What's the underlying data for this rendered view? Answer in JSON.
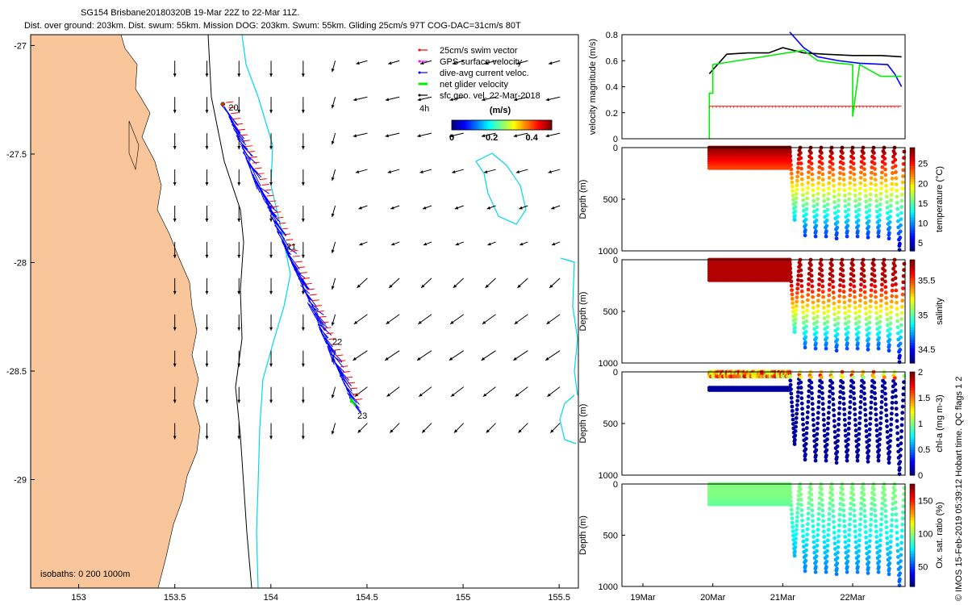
{
  "title_line1": "SG154 Brisbane20180320B 19-Mar 22Z to 22-Mar 11Z.",
  "title_line2": "Dist. over ground: 203km. Dist. swum: 55km. Mission DOG: 203km. Swum: 55km. Gliding 25cm/s 97T COG-DAC=31cm/s 80T",
  "credit": "© IMOS 15-Feb-2019 05:39:12 Hobart time. QC flags 1  2",
  "colors": {
    "land": "#f9c69c",
    "red": "#ff0000",
    "magenta": "#ff00ff",
    "blue": "#0000ff",
    "green": "#00ee00",
    "cyan": "#00d8e8",
    "black": "#000000"
  },
  "chart_data": [
    {
      "type": "scatter",
      "name": "glider track map",
      "xlim": [
        152.75,
        155.6
      ],
      "ylim": [
        -29.5,
        -26.95
      ],
      "x_ticks": [
        "153",
        "153.5",
        "154",
        "154.5",
        "155",
        "155.5"
      ],
      "x_tick_values": [
        153,
        153.5,
        154,
        154.5,
        155,
        155.5
      ],
      "y_ticks": [
        "-27",
        "-27.5",
        "-28",
        "-28.5",
        "-29"
      ],
      "y_tick_values": [
        -27,
        -27.5,
        -28,
        -28.5,
        -29
      ],
      "legend": [
        {
          "label": "25cm/s swim vector",
          "color": "#ff0000"
        },
        {
          "label": "GPS surface velocity",
          "color": "#ff00ff"
        },
        {
          "label": "dive-avg current veloc.",
          "color": "#0000ff"
        },
        {
          "label": "net glider velocity",
          "color": "#00ee00"
        },
        {
          "label": "sfc geo. vel. 22-Mar-2018",
          "color": "#000000"
        }
      ],
      "legend_scale_label": "4h",
      "colorbar": {
        "label": "(m/s)",
        "ticks": [
          "0",
          "0.2",
          "0.4"
        ],
        "tick_values": [
          0,
          0.2,
          0.4
        ],
        "range": [
          0,
          0.5
        ]
      },
      "isobaths_label": "isobaths: 0   200  1000m",
      "track": {
        "start": [
          153.75,
          -27.27
        ],
        "end": [
          154.42,
          -28.64
        ]
      },
      "day_labels": [
        {
          "text": "20",
          "lon": 153.78,
          "lat": -27.3
        },
        {
          "text": "21",
          "lon": 154.08,
          "lat": -27.94
        },
        {
          "text": "22",
          "lon": 154.32,
          "lat": -28.38
        },
        {
          "text": "23",
          "lon": 154.45,
          "lat": -28.72
        }
      ],
      "geo_vectors_grid": {
        "lon_start": 153.5,
        "lon_step": 0.167,
        "lat_start": -27.07,
        "lat_step": -0.167
      }
    },
    {
      "type": "line",
      "name": "velocity magnitude",
      "ylabel": "velocity magnitude (m/s)",
      "ylim": [
        0,
        0.8
      ],
      "y_ticks": [
        "0",
        "0.2",
        "0.4",
        "0.6",
        "0.8"
      ],
      "y_tick_values": [
        0,
        0.2,
        0.4,
        0.6,
        0.8
      ],
      "x_range_days": [
        18.7,
        22.75
      ],
      "series": [
        {
          "name": "swim (red)",
          "color": "#ff0000",
          "x": [
            19.95,
            22.7
          ],
          "values": [
            0.25,
            0.25
          ]
        },
        {
          "name": "current (blue)",
          "color": "#0000ff",
          "x": [
            21.1,
            21.3,
            21.5,
            21.8,
            22.1,
            22.5,
            22.6,
            22.7
          ],
          "values": [
            0.82,
            0.7,
            0.63,
            0.6,
            0.58,
            0.57,
            0.5,
            0.4
          ]
        },
        {
          "name": "net (black)",
          "color": "#000000",
          "x": [
            19.95,
            20.2,
            20.5,
            20.8,
            21.0,
            21.3,
            21.6,
            22.0,
            22.4,
            22.7
          ],
          "values": [
            0.5,
            0.65,
            0.66,
            0.66,
            0.7,
            0.66,
            0.65,
            0.64,
            0.64,
            0.63
          ]
        },
        {
          "name": "net glider (green)",
          "color": "#00ee00",
          "x": [
            19.95,
            19.95,
            20.0,
            20.0,
            21.3,
            21.5,
            21.8,
            22.0,
            22.0,
            22.1,
            22.4,
            22.7
          ],
          "values": [
            0,
            0.35,
            0.35,
            0.57,
            0.68,
            0.6,
            0.58,
            0.57,
            0.17,
            0.57,
            0.48,
            0.48
          ]
        }
      ]
    },
    {
      "type": "scatter",
      "name": "temperature section",
      "ylabel": "Depth (m)",
      "colorbar_label": "temperature (°C)",
      "colorbar_ticks": [
        "5",
        "10",
        "15",
        "20",
        "25"
      ],
      "colorbar_tick_values": [
        5,
        10,
        15,
        20,
        25
      ],
      "colorbar_range": [
        3,
        29
      ],
      "y_ticks": [
        "0",
        "500",
        "1000"
      ],
      "y_tick_values": [
        0,
        500,
        1000
      ],
      "ylim": [
        1000,
        0
      ],
      "dives_start": [
        21.1,
        21.25,
        21.4,
        21.55,
        21.7,
        21.85,
        22.0,
        22.15,
        22.3,
        22.45,
        22.6
      ],
      "dives_max_depth": [
        700,
        850,
        860,
        860,
        880,
        860,
        860,
        870,
        860,
        880,
        990
      ],
      "shallow_period": [
        19.95,
        21.1
      ],
      "shallow_depth": 200
    },
    {
      "type": "scatter",
      "name": "salinity section",
      "ylabel": "Depth (m)",
      "colorbar_label": "salinity",
      "colorbar_ticks": [
        "34.5",
        "35",
        "35.5"
      ],
      "colorbar_tick_values": [
        34.5,
        35,
        35.5
      ],
      "colorbar_range": [
        34.3,
        35.8
      ],
      "y_ticks": [
        "0",
        "500",
        "1000"
      ],
      "y_tick_values": [
        0,
        500,
        1000
      ],
      "ylim": [
        1000,
        0
      ]
    },
    {
      "type": "scatter",
      "name": "chl-a section",
      "ylabel": "Depth (m)",
      "colorbar_label": "chl-a (mg m-3)",
      "colorbar_ticks": [
        "0",
        "0.5",
        "1",
        "1.5",
        "2"
      ],
      "colorbar_tick_values": [
        0,
        0.5,
        1,
        1.5,
        2
      ],
      "colorbar_range": [
        0,
        2
      ],
      "y_ticks": [
        "0",
        "500",
        "1000"
      ],
      "y_tick_values": [
        0,
        500,
        1000
      ],
      "ylim": [
        1000,
        0
      ]
    },
    {
      "type": "scatter",
      "name": "oxygen saturation section",
      "ylabel": "Depth (m)",
      "colorbar_label": "Ox. sat. ratio (%)",
      "colorbar_ticks": [
        "50",
        "100",
        "150"
      ],
      "colorbar_tick_values": [
        50,
        100,
        150
      ],
      "colorbar_range": [
        20,
        175
      ],
      "y_ticks": [
        "0",
        "500",
        "1000"
      ],
      "y_tick_values": [
        0,
        500,
        1000
      ],
      "ylim": [
        1000,
        0
      ],
      "x_ticks": [
        "19Mar",
        "20Mar",
        "21Mar",
        "22Mar"
      ],
      "x_tick_values": [
        19,
        20,
        21,
        22
      ]
    }
  ]
}
